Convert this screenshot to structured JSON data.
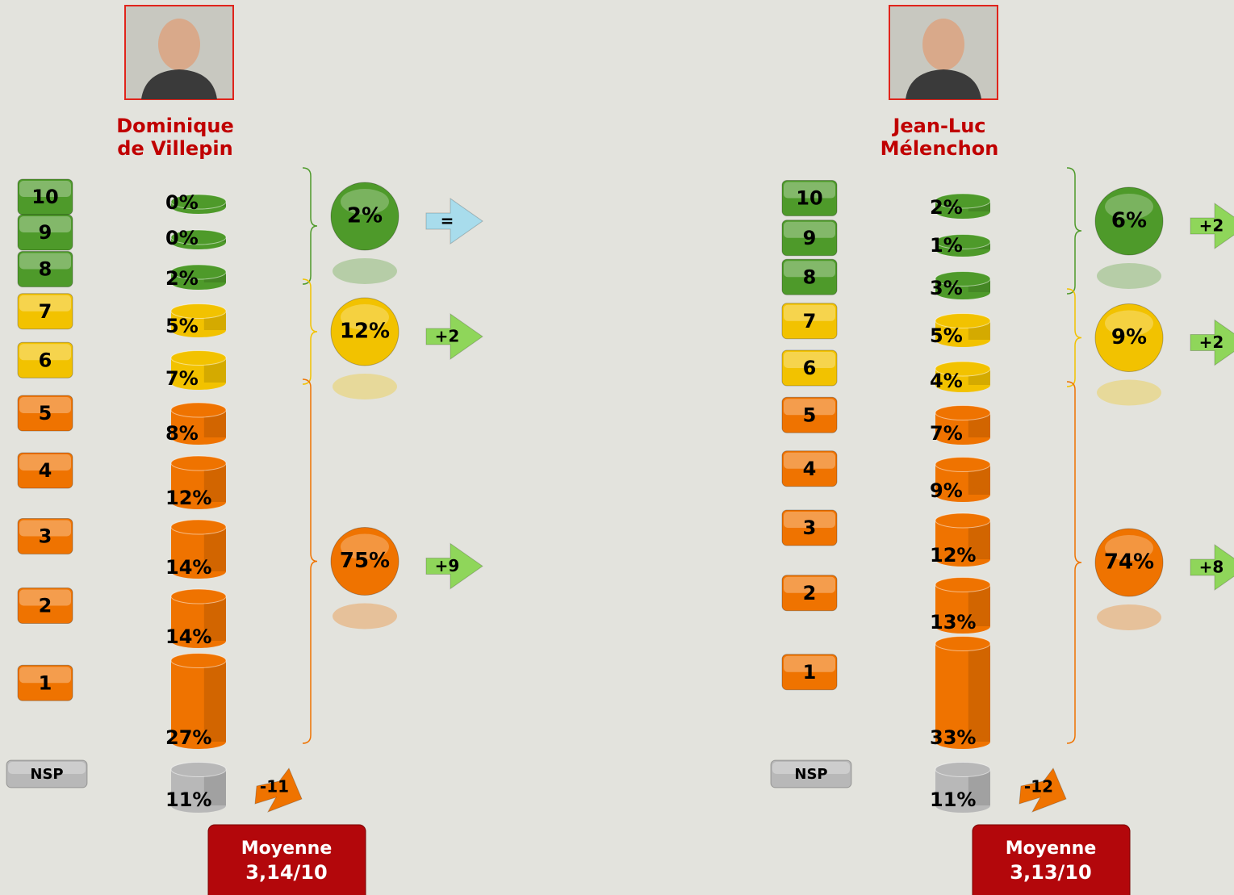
{
  "panels": [
    {
      "name_lines": [
        "Dominique",
        "de Villepin"
      ],
      "scores": [
        "10",
        "9",
        "8",
        "7",
        "6",
        "5",
        "4",
        "3",
        "2",
        "1",
        "NSP"
      ],
      "values": [
        0,
        0,
        2,
        5,
        7,
        8,
        12,
        14,
        14,
        27,
        11
      ],
      "value_labels": [
        "0%",
        "0%",
        "2%",
        "5%",
        "7%",
        "8%",
        "12%",
        "14%",
        "14%",
        "27%",
        "11%"
      ],
      "groups": [
        {
          "label": "2%",
          "change": "=",
          "color": "#4e9a2a",
          "arrow_color": "#a8dcec"
        },
        {
          "label": "12%",
          "change": "+2",
          "color": "#f2c200",
          "arrow_color": "#8fd65a"
        },
        {
          "label": "75%",
          "change": "+9",
          "color": "#ef7300",
          "arrow_color": "#8fd65a"
        }
      ],
      "nsp_color": "#b8b8b8",
      "nsp_change": "-11",
      "nsp_arrow_color": "#ef7300",
      "average_title": "Moyenne",
      "average": "3,14/10"
    },
    {
      "name_lines": [
        "Jean-Luc",
        "Mélenchon"
      ],
      "scores": [
        "10",
        "9",
        "8",
        "7",
        "6",
        "5",
        "4",
        "3",
        "2",
        "1",
        "NSP"
      ],
      "values": [
        2,
        1,
        3,
        5,
        4,
        7,
        9,
        12,
        13,
        33,
        11
      ],
      "value_labels": [
        "2%",
        "1%",
        "3%",
        "5%",
        "4%",
        "7%",
        "9%",
        "12%",
        "13%",
        "33%",
        "11%"
      ],
      "groups": [
        {
          "label": "6%",
          "change": "+2",
          "color": "#4e9a2a",
          "arrow_color": "#8fd65a"
        },
        {
          "label": "9%",
          "change": "+2",
          "color": "#f2c200",
          "arrow_color": "#8fd65a"
        },
        {
          "label": "74%",
          "change": "+8",
          "color": "#ef7300",
          "arrow_color": "#8fd65a"
        }
      ],
      "nsp_color": "#b8b8b8",
      "nsp_change": "-12",
      "nsp_arrow_color": "#ef7300",
      "average_title": "Moyenne",
      "average": "3,13/10"
    }
  ]
}
